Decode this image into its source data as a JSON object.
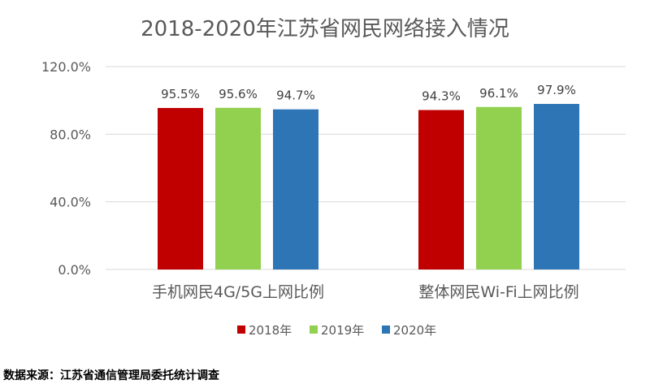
{
  "chart_data": {
    "type": "bar",
    "title": "2018-2020年江苏省网民网络接入情况",
    "categories": [
      "手机网民4G/5G上网比例",
      "整体网民Wi-Fi上网比例"
    ],
    "series": [
      {
        "name": "2018年",
        "color": "#c00000",
        "values": [
          95.5,
          94.3
        ],
        "labels": [
          "95.5%",
          "94.3%"
        ]
      },
      {
        "name": "2019年",
        "color": "#92d050",
        "values": [
          95.6,
          96.1
        ],
        "labels": [
          "95.6%",
          "96.1%"
        ]
      },
      {
        "name": "2020年",
        "color": "#2e75b6",
        "values": [
          94.7,
          97.9
        ],
        "labels": [
          "94.7%",
          "97.9%"
        ]
      }
    ],
    "ylim": [
      0,
      120
    ],
    "yticks": [
      0,
      40,
      80,
      120
    ],
    "ytick_labels": [
      "0.0%",
      "40.0%",
      "80.0%",
      "120.0%"
    ],
    "grid": true,
    "legend": "bottom"
  },
  "source": "数据来源：江苏省通信管理局委托统计调查"
}
